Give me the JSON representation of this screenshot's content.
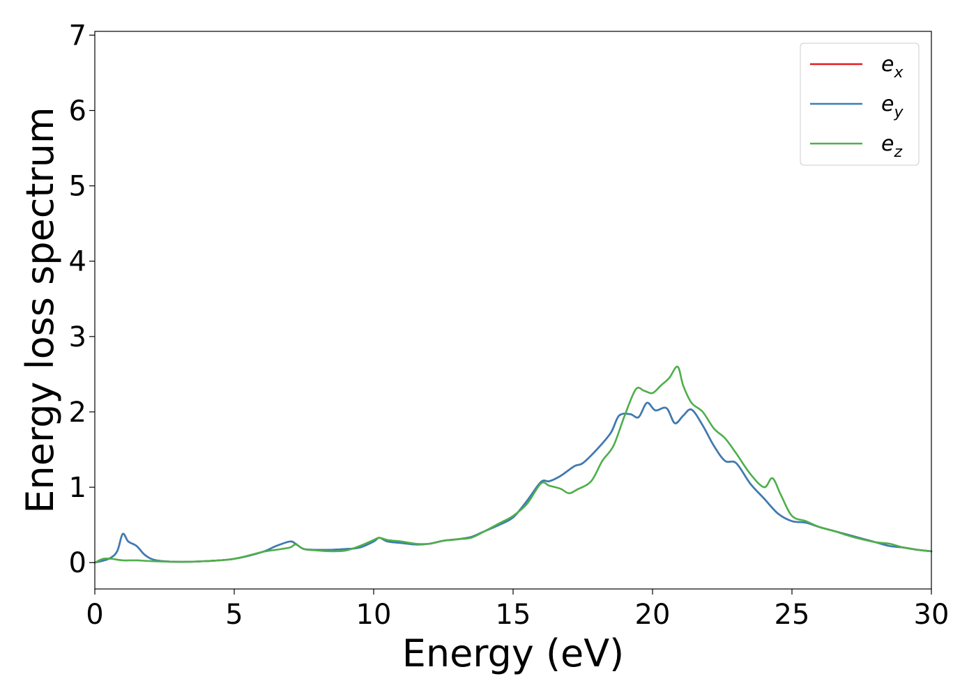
{
  "chart_data": {
    "type": "line",
    "title": "",
    "xlabel": "Energy (eV)",
    "ylabel": "Energy loss spectrum",
    "xlim": [
      0,
      30
    ],
    "ylim": [
      -0.35,
      7.05
    ],
    "xticks": [
      0,
      5,
      10,
      15,
      20,
      25,
      30
    ],
    "yticks": [
      0,
      1,
      2,
      3,
      4,
      5,
      6,
      7
    ],
    "grid": false,
    "legend_position": "top-right",
    "series": [
      {
        "name": "e_x",
        "label_base": "e",
        "label_sub": "x",
        "color": "#e41a1c",
        "x": [
          0,
          0.5,
          0.8,
          1.0,
          1.2,
          1.5,
          1.8,
          2.2,
          3,
          4,
          5,
          6,
          6.5,
          7.0,
          7.2,
          7.5,
          8,
          8.5,
          9,
          9.5,
          10,
          10.2,
          10.5,
          11,
          11.5,
          12,
          12.5,
          13,
          13.5,
          14,
          14.5,
          15,
          15.5,
          16,
          16.3,
          16.7,
          17.2,
          17.5,
          18,
          18.5,
          18.8,
          19.2,
          19.5,
          19.8,
          20.1,
          20.5,
          20.8,
          21.1,
          21.4,
          21.8,
          22.2,
          22.6,
          23,
          23.5,
          24,
          24.5,
          25,
          25.5,
          26,
          26.5,
          27,
          27.5,
          28,
          28.5,
          29,
          29.5,
          30
        ],
        "y": [
          0.0,
          0.05,
          0.15,
          0.38,
          0.28,
          0.22,
          0.1,
          0.03,
          0.01,
          0.02,
          0.05,
          0.14,
          0.22,
          0.28,
          0.25,
          0.18,
          0.17,
          0.17,
          0.18,
          0.2,
          0.28,
          0.33,
          0.28,
          0.26,
          0.24,
          0.25,
          0.29,
          0.31,
          0.34,
          0.42,
          0.5,
          0.6,
          0.82,
          1.07,
          1.08,
          1.15,
          1.28,
          1.32,
          1.5,
          1.72,
          1.95,
          1.97,
          1.93,
          2.12,
          2.02,
          2.05,
          1.85,
          1.95,
          2.03,
          1.82,
          1.55,
          1.35,
          1.32,
          1.05,
          0.85,
          0.65,
          0.55,
          0.53,
          0.47,
          0.42,
          0.37,
          0.32,
          0.27,
          0.22,
          0.2,
          0.17,
          0.15
        ]
      },
      {
        "name": "e_y",
        "label_base": "e",
        "label_sub": "y",
        "color": "#377eb8",
        "x": [
          0,
          0.5,
          0.8,
          1.0,
          1.2,
          1.5,
          1.8,
          2.2,
          3,
          4,
          5,
          6,
          6.5,
          7.0,
          7.2,
          7.5,
          8,
          8.5,
          9,
          9.5,
          10,
          10.2,
          10.5,
          11,
          11.5,
          12,
          12.5,
          13,
          13.5,
          14,
          14.5,
          15,
          15.5,
          16,
          16.3,
          16.7,
          17.2,
          17.5,
          18,
          18.5,
          18.8,
          19.2,
          19.5,
          19.8,
          20.1,
          20.5,
          20.8,
          21.1,
          21.4,
          21.8,
          22.2,
          22.6,
          23,
          23.5,
          24,
          24.5,
          25,
          25.5,
          26,
          26.5,
          27,
          27.5,
          28,
          28.5,
          29,
          29.5,
          30
        ],
        "y": [
          0.0,
          0.05,
          0.15,
          0.38,
          0.28,
          0.22,
          0.1,
          0.03,
          0.01,
          0.02,
          0.05,
          0.14,
          0.22,
          0.28,
          0.25,
          0.18,
          0.17,
          0.17,
          0.18,
          0.2,
          0.28,
          0.33,
          0.28,
          0.26,
          0.24,
          0.25,
          0.29,
          0.31,
          0.34,
          0.42,
          0.5,
          0.6,
          0.82,
          1.07,
          1.08,
          1.15,
          1.28,
          1.32,
          1.5,
          1.72,
          1.95,
          1.97,
          1.93,
          2.12,
          2.02,
          2.05,
          1.85,
          1.95,
          2.03,
          1.82,
          1.55,
          1.35,
          1.32,
          1.05,
          0.85,
          0.65,
          0.55,
          0.53,
          0.47,
          0.42,
          0.37,
          0.32,
          0.27,
          0.22,
          0.2,
          0.17,
          0.15
        ]
      },
      {
        "name": "e_z",
        "label_base": "e",
        "label_sub": "z",
        "color": "#4daf4a",
        "x": [
          0,
          0.3,
          0.6,
          1.0,
          1.5,
          2.0,
          3,
          4,
          5,
          6,
          6.5,
          7.0,
          7.2,
          7.5,
          8,
          8.5,
          9,
          9.5,
          10,
          10.2,
          10.5,
          11,
          11.5,
          12,
          12.5,
          13,
          13.5,
          14,
          14.5,
          15,
          15.5,
          16,
          16.3,
          16.7,
          17,
          17.3,
          17.8,
          18.2,
          18.6,
          19,
          19.4,
          19.7,
          20,
          20.3,
          20.6,
          20.9,
          21.1,
          21.4,
          21.8,
          22.2,
          22.6,
          23,
          23.5,
          24,
          24.3,
          24.6,
          25,
          25.5,
          26,
          26.5,
          27,
          27.5,
          28,
          28.5,
          29,
          29.5,
          30
        ],
        "y": [
          0.0,
          0.05,
          0.05,
          0.03,
          0.03,
          0.02,
          0.01,
          0.02,
          0.05,
          0.14,
          0.17,
          0.2,
          0.24,
          0.18,
          0.16,
          0.15,
          0.16,
          0.22,
          0.3,
          0.33,
          0.3,
          0.28,
          0.25,
          0.25,
          0.29,
          0.31,
          0.33,
          0.42,
          0.52,
          0.62,
          0.78,
          1.05,
          1.02,
          0.98,
          0.92,
          0.97,
          1.08,
          1.35,
          1.55,
          1.95,
          2.3,
          2.28,
          2.25,
          2.35,
          2.45,
          2.6,
          2.35,
          2.12,
          2.0,
          1.78,
          1.65,
          1.45,
          1.18,
          1.0,
          1.12,
          0.9,
          0.62,
          0.55,
          0.47,
          0.42,
          0.36,
          0.31,
          0.27,
          0.25,
          0.2,
          0.17,
          0.15
        ]
      }
    ]
  }
}
